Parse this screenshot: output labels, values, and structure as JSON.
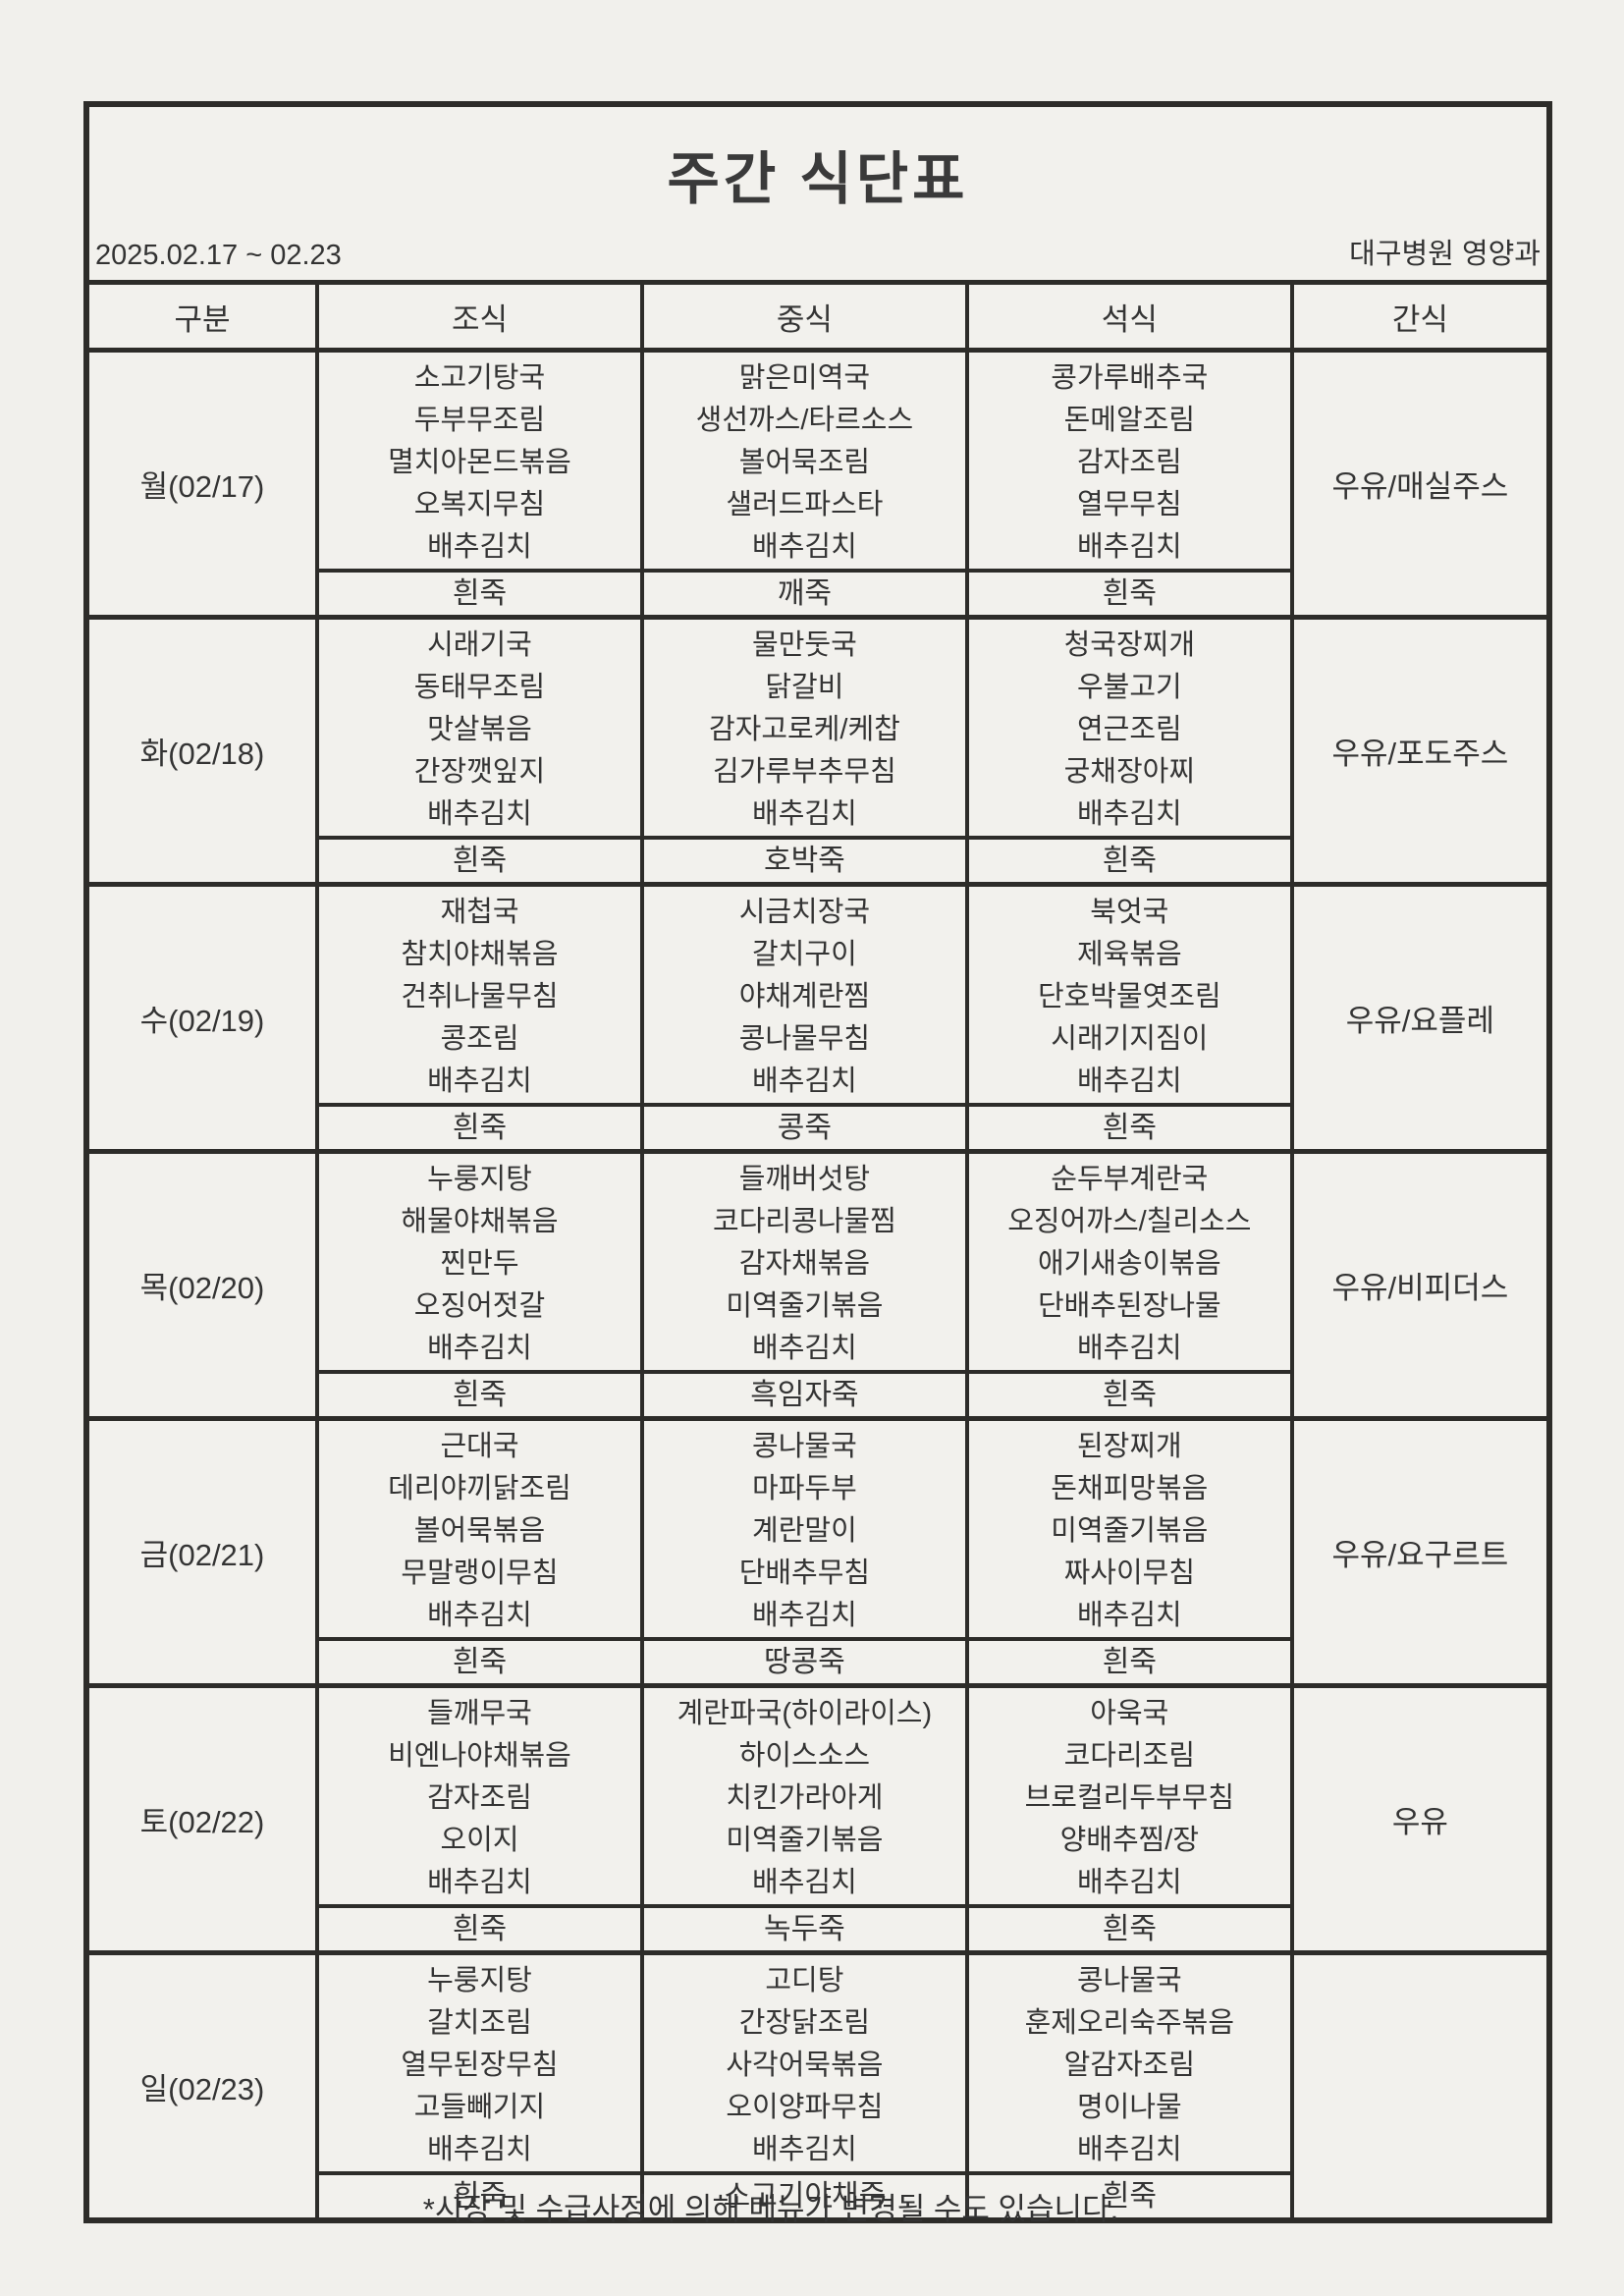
{
  "page": {
    "title": "주간 식단표",
    "date_range": "2025.02.17 ~ 02.23",
    "organization": "대구병원 영양과",
    "footer_note": "*시장 및 수급사정에 의해 메뉴가 변경될 수도 있습니다."
  },
  "table": {
    "headers": {
      "category": "구분",
      "breakfast": "조식",
      "lunch": "중식",
      "dinner": "석식",
      "snack": "간식"
    },
    "days": [
      {
        "label": "월(02/17)",
        "breakfast": {
          "items": [
            "소고기탕국",
            "두부무조림",
            "멸치아몬드볶음",
            "오복지무침",
            "배추김치"
          ],
          "porridge": "흰죽"
        },
        "lunch": {
          "items": [
            "맑은미역국",
            "생선까스/타르소스",
            "볼어묵조림",
            "샐러드파스타",
            "배추김치"
          ],
          "porridge": "깨죽"
        },
        "dinner": {
          "items": [
            "콩가루배추국",
            "돈메알조림",
            "감자조림",
            "열무무침",
            "배추김치"
          ],
          "porridge": "흰죽"
        },
        "snack": "우유/매실주스"
      },
      {
        "label": "화(02/18)",
        "breakfast": {
          "items": [
            "시래기국",
            "동태무조림",
            "맛살볶음",
            "간장깻잎지",
            "배추김치"
          ],
          "porridge": "흰죽"
        },
        "lunch": {
          "items": [
            "물만둣국",
            "닭갈비",
            "감자고로케/케찹",
            "김가루부추무침",
            "배추김치"
          ],
          "porridge": "호박죽"
        },
        "dinner": {
          "items": [
            "청국장찌개",
            "우불고기",
            "연근조림",
            "궁채장아찌",
            "배추김치"
          ],
          "porridge": "흰죽"
        },
        "snack": "우유/포도주스"
      },
      {
        "label": "수(02/19)",
        "breakfast": {
          "items": [
            "재첩국",
            "참치야채볶음",
            "건취나물무침",
            "콩조림",
            "배추김치"
          ],
          "porridge": "흰죽"
        },
        "lunch": {
          "items": [
            "시금치장국",
            "갈치구이",
            "야채계란찜",
            "콩나물무침",
            "배추김치"
          ],
          "porridge": "콩죽"
        },
        "dinner": {
          "items": [
            "북엇국",
            "제육볶음",
            "단호박물엿조림",
            "시래기지짐이",
            "배추김치"
          ],
          "porridge": "흰죽"
        },
        "snack": "우유/요플레"
      },
      {
        "label": "목(02/20)",
        "breakfast": {
          "items": [
            "누룽지탕",
            "해물야채볶음",
            "찐만두",
            "오징어젓갈",
            "배추김치"
          ],
          "porridge": "흰죽"
        },
        "lunch": {
          "items": [
            "들깨버섯탕",
            "코다리콩나물찜",
            "감자채볶음",
            "미역줄기볶음",
            "배추김치"
          ],
          "porridge": "흑임자죽"
        },
        "dinner": {
          "items": [
            "순두부계란국",
            "오징어까스/칠리소스",
            "애기새송이볶음",
            "단배추된장나물",
            "배추김치"
          ],
          "porridge": "흰죽"
        },
        "snack": "우유/비피더스"
      },
      {
        "label": "금(02/21)",
        "breakfast": {
          "items": [
            "근대국",
            "데리야끼닭조림",
            "볼어묵볶음",
            "무말랭이무침",
            "배추김치"
          ],
          "porridge": "흰죽"
        },
        "lunch": {
          "items": [
            "콩나물국",
            "마파두부",
            "계란말이",
            "단배추무침",
            "배추김치"
          ],
          "porridge": "땅콩죽"
        },
        "dinner": {
          "items": [
            "된장찌개",
            "돈채피망볶음",
            "미역줄기볶음",
            "짜사이무침",
            "배추김치"
          ],
          "porridge": "흰죽"
        },
        "snack": "우유/요구르트"
      },
      {
        "label": "토(02/22)",
        "breakfast": {
          "items": [
            "들깨무국",
            "비엔나야채볶음",
            "감자조림",
            "오이지",
            "배추김치"
          ],
          "porridge": "흰죽"
        },
        "lunch": {
          "items": [
            "계란파국(하이라이스)",
            "하이스소스",
            "치킨가라아게",
            "미역줄기볶음",
            "배추김치"
          ],
          "porridge": "녹두죽"
        },
        "dinner": {
          "items": [
            "아욱국",
            "코다리조림",
            "브로컬리두부무침",
            "양배추찜/장",
            "배추김치"
          ],
          "porridge": "흰죽"
        },
        "snack": "우유"
      },
      {
        "label": "일(02/23)",
        "breakfast": {
          "items": [
            "누룽지탕",
            "갈치조림",
            "열무된장무침",
            "고들빼기지",
            "배추김치"
          ],
          "porridge": "흰죽"
        },
        "lunch": {
          "items": [
            "고디탕",
            "간장닭조림",
            "사각어묵볶음",
            "오이양파무침",
            "배추김치"
          ],
          "porridge": "소고기야채죽"
        },
        "dinner": {
          "items": [
            "콩나물국",
            "훈제오리숙주볶음",
            "알감자조림",
            "명이나물",
            "배추김치"
          ],
          "porridge": "흰죽"
        },
        "snack": ""
      }
    ]
  }
}
